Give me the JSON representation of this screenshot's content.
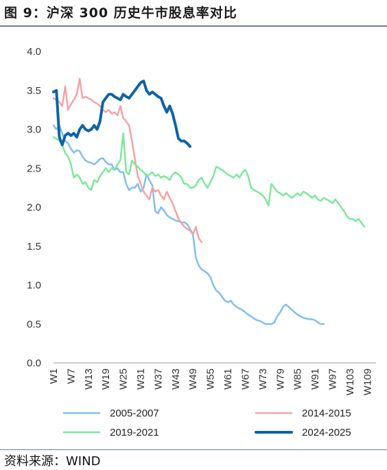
{
  "title": "图 9：沪深 300 历史牛市股息率对比",
  "source": "资料来源：WIND",
  "chart_data": {
    "type": "line",
    "ylim": [
      0,
      4
    ],
    "y_ticks": [
      "0.0",
      "0.5",
      "1.0",
      "1.5",
      "2.0",
      "2.5",
      "3.0",
      "3.5",
      "4.0"
    ],
    "x_ticks": [
      "W1",
      "W7",
      "W13",
      "W19",
      "W25",
      "W31",
      "W37",
      "W43",
      "W49",
      "W55",
      "W61",
      "W67",
      "W73",
      "W79",
      "W85",
      "W91",
      "W97",
      "W103",
      "W109"
    ],
    "x_range": [
      1,
      112
    ],
    "grid": false,
    "legend_position": "bottom",
    "series": [
      {
        "name": "2005-2007",
        "color": "#7fbff0",
        "width": 2.5,
        "values": [
          3.05,
          3.0,
          3.05,
          2.95,
          2.85,
          2.82,
          2.75,
          2.7,
          2.73,
          2.72,
          2.65,
          2.6,
          2.58,
          2.57,
          2.55,
          2.58,
          2.62,
          2.63,
          2.58,
          2.55,
          2.55,
          2.48,
          2.5,
          2.45,
          2.45,
          2.3,
          2.22,
          2.25,
          2.25,
          2.3,
          2.2,
          2.25,
          2.42,
          2.35,
          2.28,
          1.95,
          1.92,
          2.0,
          1.96,
          1.9,
          1.87,
          1.85,
          1.83,
          1.82,
          1.8,
          1.81,
          1.78,
          1.72,
          1.65,
          1.35,
          1.25,
          1.2,
          1.18,
          1.15,
          1.1,
          1.0,
          0.93,
          0.9,
          0.85,
          0.8,
          0.78,
          0.8,
          0.75,
          0.72,
          0.7,
          0.68,
          0.65,
          0.62,
          0.6,
          0.57,
          0.55,
          0.54,
          0.52,
          0.5,
          0.5,
          0.5,
          0.52,
          0.6,
          0.65,
          0.72,
          0.75,
          0.72,
          0.68,
          0.65,
          0.62,
          0.6,
          0.58,
          0.57,
          0.56,
          0.56,
          0.55,
          0.52,
          0.5,
          0.5
        ]
      },
      {
        "name": "2014-2015",
        "color": "#f4a3a3",
        "width": 2.5,
        "values": [
          3.4,
          3.38,
          3.35,
          3.3,
          3.55,
          3.25,
          3.32,
          3.38,
          3.45,
          3.65,
          3.4,
          3.42,
          3.4,
          3.38,
          3.35,
          3.33,
          3.3,
          3.25,
          3.22,
          3.25,
          3.2,
          3.22,
          3.18,
          3.3,
          3.15,
          3.1,
          3.05,
          2.85,
          2.62,
          2.4,
          2.3,
          2.2,
          2.15,
          2.1,
          2.25,
          2.2,
          2.22,
          2.15,
          2.1,
          2.2,
          2.12,
          2.05,
          1.95,
          1.85,
          1.8,
          1.75,
          1.72,
          1.7,
          1.65,
          1.75,
          1.6,
          1.55
        ]
      },
      {
        "name": "2019-2021",
        "color": "#7ee89a",
        "width": 2.5,
        "values": [
          2.9,
          2.88,
          2.85,
          2.8,
          2.7,
          2.65,
          2.55,
          2.38,
          2.42,
          2.38,
          2.3,
          2.32,
          2.25,
          2.22,
          2.35,
          2.32,
          2.4,
          2.45,
          2.5,
          2.45,
          2.5,
          2.48,
          2.55,
          2.6,
          2.95,
          2.45,
          2.42,
          2.6,
          2.55,
          2.52,
          2.48,
          2.45,
          2.4,
          2.42,
          2.45,
          2.4,
          2.42,
          2.38,
          2.4,
          2.38,
          2.35,
          2.42,
          2.45,
          2.42,
          2.38,
          2.3,
          2.3,
          2.25,
          2.25,
          2.28,
          2.35,
          2.38,
          2.3,
          2.25,
          2.32,
          2.4,
          2.52,
          2.5,
          2.48,
          2.45,
          2.42,
          2.4,
          2.38,
          2.42,
          2.38,
          2.45,
          2.48,
          2.4,
          2.25,
          2.22,
          2.2,
          2.18,
          2.15,
          2.1,
          2.02,
          2.3,
          2.25,
          2.2,
          2.18,
          2.15,
          2.18,
          2.15,
          2.12,
          2.15,
          2.18,
          2.15,
          2.2,
          2.18,
          2.15,
          2.12,
          2.15,
          2.1,
          2.08,
          2.12,
          2.1,
          2.08,
          2.05,
          2.1,
          2.05,
          2.0,
          1.95,
          1.88,
          1.85,
          1.85,
          1.82,
          1.85,
          1.8,
          1.75
        ]
      },
      {
        "name": "2024-2025",
        "color": "#0d63a5",
        "width": 4,
        "values": [
          3.48,
          3.5,
          2.9,
          2.8,
          2.92,
          2.95,
          2.92,
          2.95,
          2.9,
          3.0,
          3.05,
          3.0,
          2.98,
          3.0,
          3.05,
          3.0,
          3.1,
          3.35,
          3.4,
          3.45,
          3.45,
          3.42,
          3.4,
          3.38,
          3.45,
          3.42,
          3.4,
          3.45,
          3.5,
          3.55,
          3.6,
          3.62,
          3.5,
          3.45,
          3.48,
          3.45,
          3.42,
          3.4,
          3.3,
          3.22,
          3.3,
          3.2,
          3.05,
          2.88,
          2.85,
          2.85,
          2.82,
          2.78
        ]
      }
    ]
  }
}
